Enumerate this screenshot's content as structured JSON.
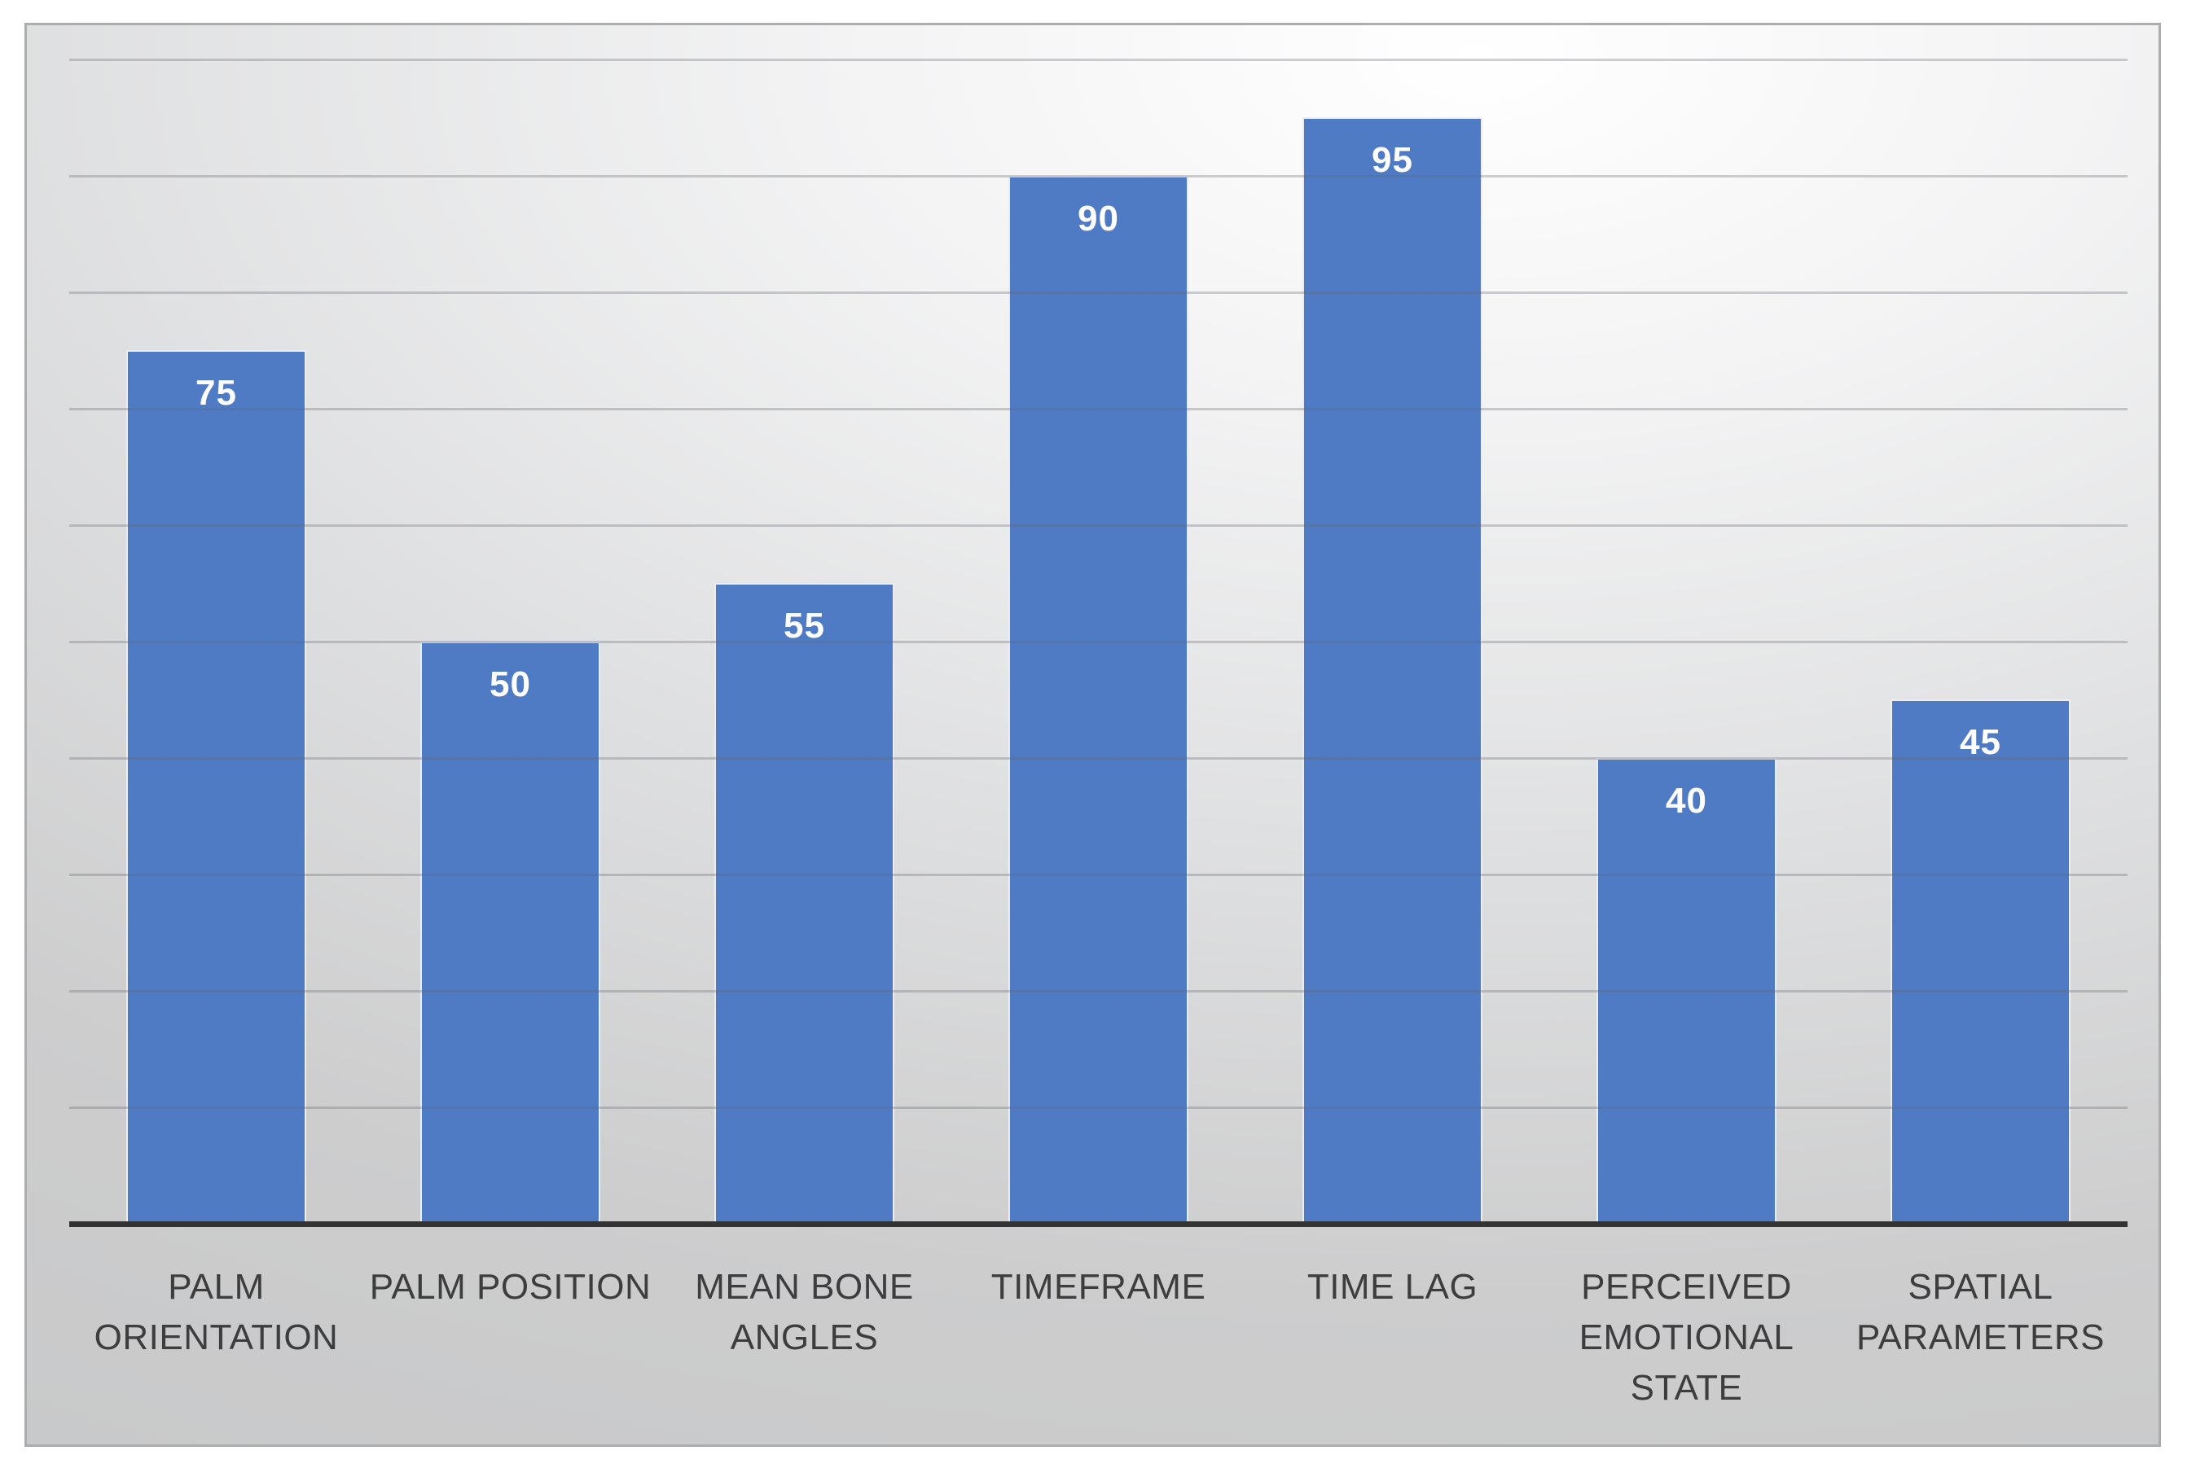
{
  "panel": {
    "border_color": "#adadad",
    "gradient_bright": "#ffffff",
    "gradient_mid": "#dedfe0",
    "gradient_edge": "#c6c7c8"
  },
  "chart_data": {
    "type": "bar",
    "categories": [
      "PALM ORIENTATION",
      "PALM POSITION",
      "MEAN BONE ANGLES",
      "TIMEFRAME",
      "TIME LAG",
      "PERCEIVED EMOTIONAL STATE",
      "SPATIAL PARAMETERS"
    ],
    "values": [
      75,
      50,
      55,
      90,
      95,
      40,
      45
    ],
    "title": "",
    "xlabel": "",
    "ylabel": "",
    "ylim": [
      0,
      105
    ],
    "y_axis_labels_visible": false,
    "gridline_interval": 10,
    "gridline_max": 100,
    "grid": true,
    "legend": "none",
    "data_labels_position": "inside-end",
    "bar_color": "#4F7BC5",
    "bar_outline_color": "rgba(248,249,251,0.9)",
    "value_label_color": "#FFFFFF",
    "category_label_color": "#3D3D3D",
    "axis_line_color": "#333333",
    "gridline_color": "rgba(100,100,110,0.30)"
  }
}
